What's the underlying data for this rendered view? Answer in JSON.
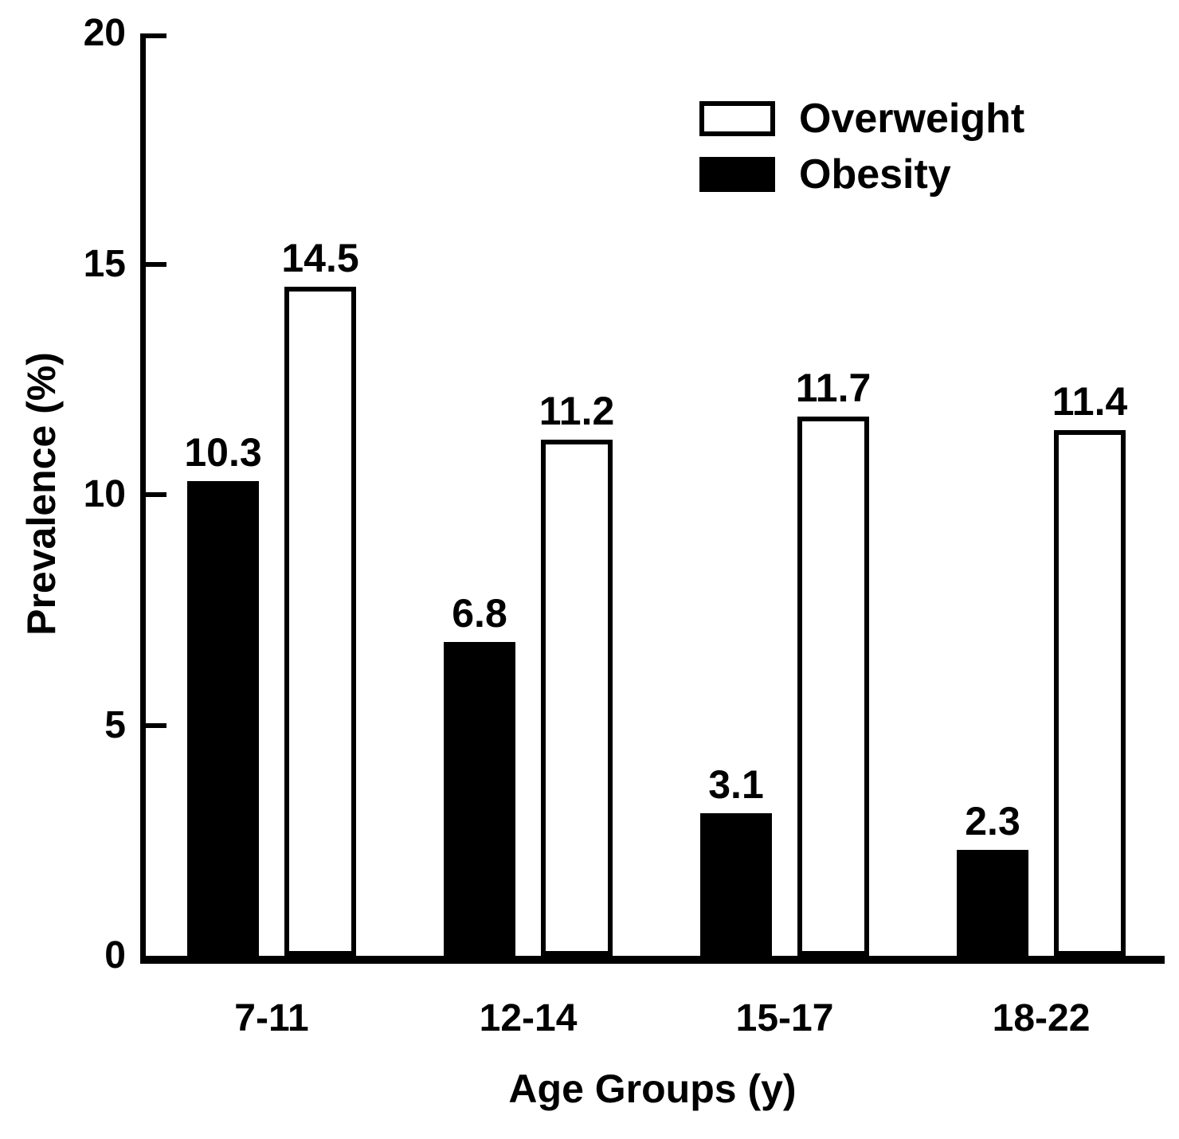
{
  "figure": {
    "background": "#ffffff",
    "axis_color": "#000000",
    "text_color": "#000000"
  },
  "chart_data": {
    "type": "bar",
    "title": "",
    "xlabel": "Age Groups (y)",
    "ylabel": "Prevalence (%)",
    "categories": [
      "7-11",
      "12-14",
      "15-17",
      "18-22"
    ],
    "series": [
      {
        "name": "Obesity",
        "style": "filled",
        "fill": "#000000",
        "edge": "#000000",
        "values": [
          10.3,
          6.8,
          3.1,
          2.3
        ],
        "value_labels": [
          "10.3",
          "6.8",
          "3.1",
          "2.3"
        ]
      },
      {
        "name": "Overweight",
        "style": "open",
        "fill": "#ffffff",
        "edge": "#000000",
        "values": [
          14.5,
          11.2,
          11.7,
          11.4
        ],
        "value_labels": [
          "14.5",
          "11.2",
          "11.7",
          "11.4"
        ]
      }
    ],
    "ylim": [
      0,
      20
    ],
    "yticks": [
      "0",
      "5",
      "10",
      "15",
      "20"
    ],
    "grid": false,
    "legend_position": "top-right",
    "value_labels_shown": true
  },
  "legend": {
    "items": [
      {
        "label": "Overweight",
        "swatch_fill": "#ffffff",
        "swatch_edge": "#000000"
      },
      {
        "label": "Obesity",
        "swatch_fill": "#000000",
        "swatch_edge": "#000000"
      }
    ]
  }
}
